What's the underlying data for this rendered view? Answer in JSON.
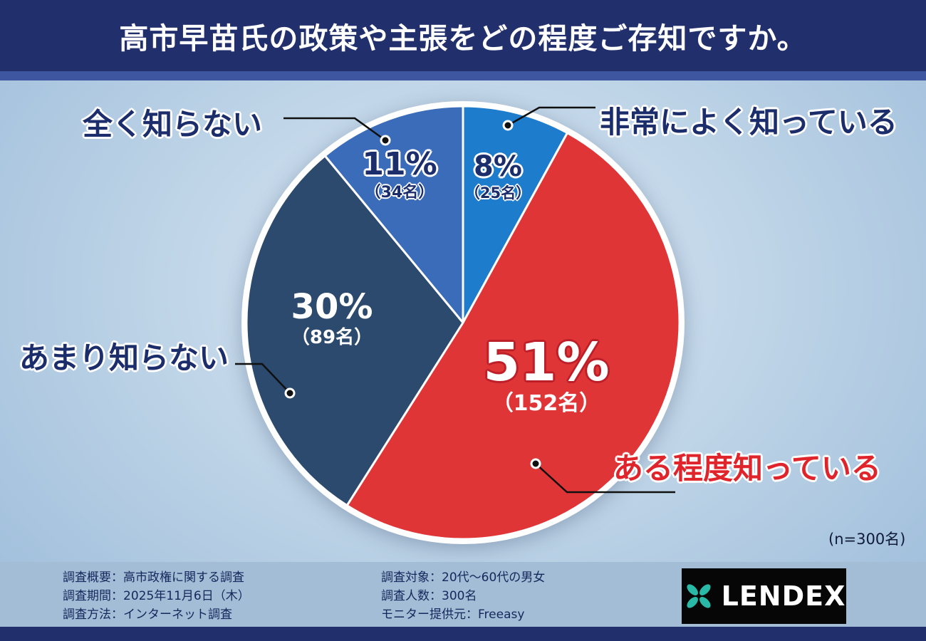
{
  "header": {
    "title": "高市早苗氏の政策や主張をどの程度ご存知ですか。"
  },
  "chart_data": {
    "type": "pie",
    "title": "高市早苗氏の政策や主張をどの程度ご存知ですか。",
    "sample_note": "(n=300名)",
    "total_n": 300,
    "start_angle_deg": 0,
    "direction": "clockwise",
    "slices": [
      {
        "label": "非常によく知っている",
        "percent": 8,
        "count": 25,
        "pct_label": "8%",
        "count_label": "（25名）",
        "color": "#1e7ccd"
      },
      {
        "label": "ある程度知っている",
        "percent": 51,
        "count": 152,
        "pct_label": "51%",
        "count_label": "（152名）",
        "color": "#e03537"
      },
      {
        "label": "あまり知らない",
        "percent": 30,
        "count": 89,
        "pct_label": "30%",
        "count_label": "（89名）",
        "color": "#2b4a6e"
      },
      {
        "label": "全く知らない",
        "percent": 11,
        "count": 34,
        "pct_label": "11%",
        "count_label": "（34名）",
        "color": "#3a6cba"
      }
    ]
  },
  "footer": {
    "left_lines": [
      "調査概要：高市政権に関する調査",
      "調査期間：2025年11月6日（木）",
      "調査方法：インターネット調査"
    ],
    "right_lines": [
      "調査対象：20代〜60代の男女",
      "調査人数：300名",
      "モニター提供元：Freeasy"
    ],
    "logo_text": "LENDEX"
  },
  "colors": {
    "header_bg": "#212f6d",
    "accent_red": "#e0242b",
    "label_navy": "#1b2d6b",
    "logo_teal": "#2bb9a7"
  }
}
